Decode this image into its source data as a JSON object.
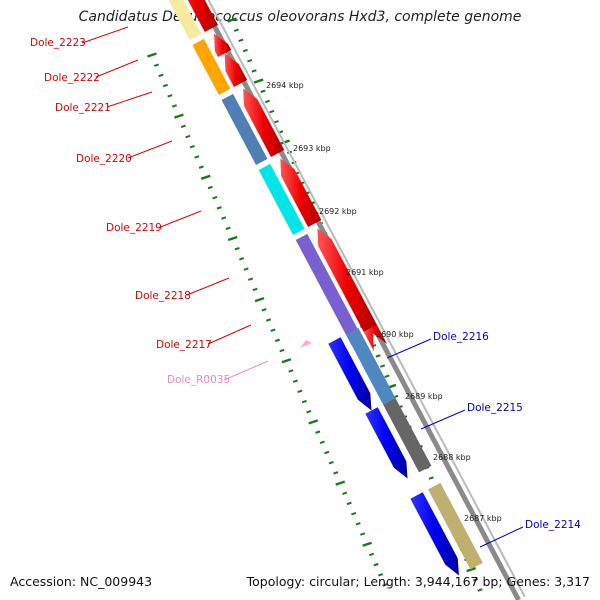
{
  "title": "Candidatus Desulfococcus oleovorans Hxd3, complete genome",
  "footer": {
    "accession": "Accession: NC_009943",
    "topology": "Topology: circular; Length: 3,944,167 bp; Genes: 3,317"
  },
  "colors": {
    "reverse_label": "#e00000",
    "forward_label": "#0000cc",
    "rna_label": "#ee88bb",
    "tick": "#1a7a1a",
    "backbone": "#8a8a8a"
  },
  "kbp_ticks": [
    "2694 kbp",
    "2693 kbp",
    "2692 kbp",
    "2691 kbp",
    "2690 kbp",
    "2689 kbp",
    "2688 kbp",
    "2687 kbp"
  ],
  "genes": [
    {
      "label": "Dole_2223",
      "strand": "reverse",
      "track_color": "#f5eaa0"
    },
    {
      "label": "Dole_2222",
      "strand": "reverse",
      "track_color": "#ffa500"
    },
    {
      "label": "Dole_2221",
      "strand": "reverse",
      "track_color": "#ffa500"
    },
    {
      "label": "Dole_2220",
      "strand": "reverse",
      "track_color": "#4f7fb3"
    },
    {
      "label": "Dole_2219",
      "strand": "reverse",
      "track_color": "#00e5e5"
    },
    {
      "label": "Dole_2218",
      "strand": "reverse",
      "track_color": "#7a5fd0"
    },
    {
      "label": "Dole_2217",
      "strand": "reverse",
      "track_color": "#7a5fd0"
    },
    {
      "label": "Dole_R0035",
      "strand": "rna",
      "track_color": "#ffaad0"
    },
    {
      "label": "Dole_2216",
      "strand": "forward",
      "track_color": "#4f88c0"
    },
    {
      "label": "Dole_2215",
      "strand": "forward",
      "track_color": "#666666"
    },
    {
      "label": "Dole_2214",
      "strand": "forward",
      "track_color": "#bfb070"
    }
  ]
}
